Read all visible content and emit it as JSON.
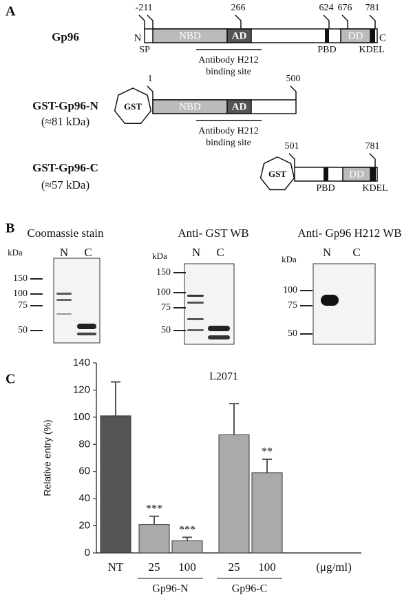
{
  "panel_a": {
    "letter": "A",
    "proteins": [
      {
        "name": "Gp96",
        "positions": [
          -21,
          1,
          266,
          624,
          676,
          781
        ],
        "domains": [
          "NBD",
          "AD",
          "DD"
        ],
        "terminals": [
          "N",
          "C"
        ],
        "labels": [
          "SP",
          "PBD",
          "KDEL"
        ],
        "antibody": [
          "Antibody H212",
          "binding site"
        ]
      },
      {
        "name": "GST-Gp96-N",
        "size": "(≈81 kDa)",
        "tag": "GST",
        "positions": [
          1,
          500
        ],
        "domains": [
          "NBD",
          "AD"
        ],
        "antibody": [
          "Antibody H212",
          "binding site"
        ]
      },
      {
        "name": "GST-Gp96-C",
        "size": "(≈57 kDa)",
        "tag": "GST",
        "positions": [
          501,
          781
        ],
        "domains": [
          "DD"
        ],
        "labels": [
          "PBD",
          "KDEL"
        ]
      }
    ]
  },
  "panel_b": {
    "letter": "B",
    "blots": [
      {
        "title": "Coomassie stain",
        "unit": "kDa",
        "lanes": [
          "N",
          "C"
        ],
        "markers": [
          150,
          100,
          75,
          50
        ]
      },
      {
        "title": "Anti- GST WB",
        "unit": "kDa",
        "lanes": [
          "N",
          "C"
        ],
        "markers": [
          150,
          100,
          75,
          50
        ]
      },
      {
        "title": "Anti- Gp96 H212 WB",
        "unit": "kDa",
        "lanes": [
          "N",
          "C"
        ],
        "markers": [
          100,
          75,
          50
        ]
      }
    ]
  },
  "chart_data": {
    "type": "bar",
    "letter": "C",
    "title": "L2071",
    "y_label": "Relative entry (%)",
    "categories": [
      "NT",
      "25",
      "100",
      "25",
      "100"
    ],
    "group_labels": [
      "Gp96-N",
      "Gp96-C"
    ],
    "unit_label": "(μg/ml)",
    "values": [
      101,
      21,
      9,
      87,
      59
    ],
    "errors": [
      25,
      6,
      2.5,
      23,
      10
    ],
    "annotations": [
      null,
      "***",
      "***",
      null,
      "**"
    ],
    "colors": [
      "#555555",
      "#aaaaaa",
      "#aaaaaa",
      "#aaaaaa",
      "#aaaaaa"
    ],
    "ylim": [
      0,
      140
    ],
    "yticks": [
      0,
      20,
      40,
      60,
      80,
      100,
      120,
      140
    ],
    "grid": false
  }
}
